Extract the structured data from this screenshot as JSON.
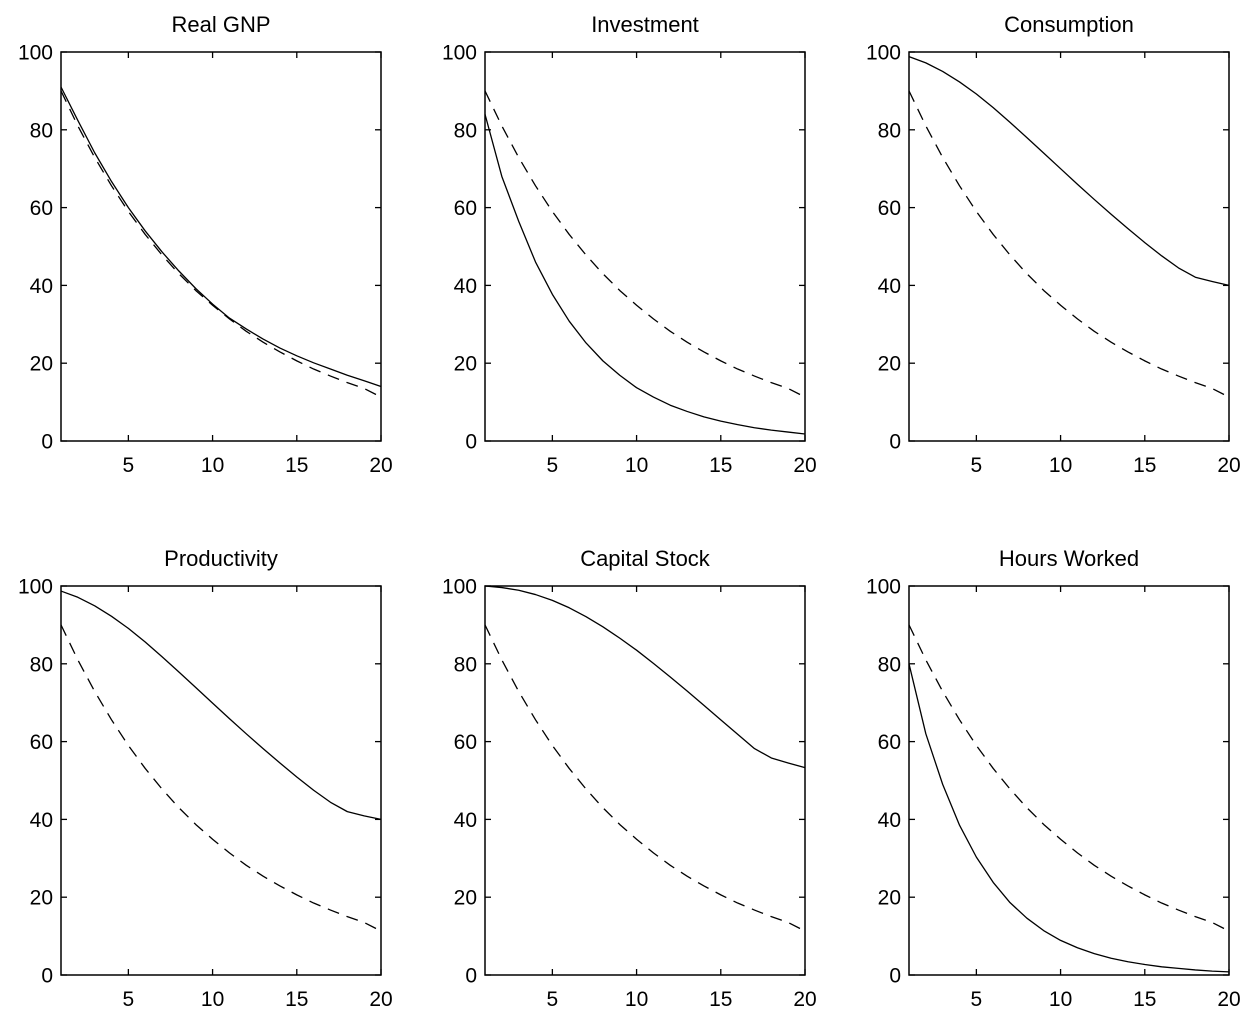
{
  "chart_data": [
    {
      "type": "line",
      "title": "Real GNP",
      "xlim": [
        1,
        20
      ],
      "ylim": [
        0,
        100
      ],
      "xticks": [
        5,
        10,
        15,
        20
      ],
      "yticks": [
        0,
        20,
        40,
        60,
        80,
        100
      ],
      "x": [
        1,
        2,
        3,
        4,
        5,
        6,
        7,
        8,
        9,
        10,
        11,
        12,
        13,
        14,
        15,
        16,
        17,
        18,
        19,
        20
      ],
      "series": [
        {
          "style": "solid",
          "values": [
            91.0,
            82.4,
            74.1,
            66.7,
            60.0,
            54.0,
            48.6,
            43.7,
            39.2,
            35.2,
            31.6,
            28.8,
            26.2,
            23.9,
            21.9,
            20.1,
            18.5,
            16.9,
            15.5,
            14.0
          ]
        },
        {
          "style": "dashed",
          "values": [
            90.0,
            81.0,
            72.9,
            65.6,
            59.0,
            53.1,
            47.8,
            43.0,
            38.7,
            34.9,
            31.4,
            28.2,
            25.4,
            22.9,
            20.6,
            18.5,
            16.7,
            15.0,
            13.5,
            11.3
          ]
        }
      ]
    },
    {
      "type": "line",
      "title": "Investment",
      "xlim": [
        1,
        20
      ],
      "ylim": [
        0,
        100
      ],
      "xticks": [
        5,
        10,
        15,
        20
      ],
      "yticks": [
        0,
        20,
        40,
        60,
        80,
        100
      ],
      "x": [
        1,
        2,
        3,
        4,
        5,
        6,
        7,
        8,
        9,
        10,
        11,
        12,
        13,
        14,
        15,
        16,
        17,
        18,
        19,
        20
      ],
      "series": [
        {
          "style": "solid",
          "values": [
            84.0,
            68.0,
            56.5,
            46.0,
            37.7,
            30.8,
            25.2,
            20.6,
            16.9,
            13.7,
            11.3,
            9.2,
            7.6,
            6.2,
            5.1,
            4.2,
            3.4,
            2.8,
            2.3,
            1.8
          ]
        },
        {
          "style": "dashed",
          "values": [
            90.0,
            81.0,
            72.9,
            65.6,
            59.0,
            53.1,
            47.8,
            43.0,
            38.7,
            34.9,
            31.4,
            28.2,
            25.4,
            22.9,
            20.6,
            18.5,
            16.7,
            15.0,
            13.5,
            11.3
          ]
        }
      ]
    },
    {
      "type": "line",
      "title": "Consumption",
      "xlim": [
        1,
        20
      ],
      "ylim": [
        0,
        100
      ],
      "xticks": [
        5,
        10,
        15,
        20
      ],
      "yticks": [
        0,
        20,
        40,
        60,
        80,
        100
      ],
      "x": [
        1,
        2,
        3,
        4,
        5,
        6,
        7,
        8,
        9,
        10,
        11,
        12,
        13,
        14,
        15,
        16,
        17,
        18,
        19,
        20
      ],
      "series": [
        {
          "style": "solid",
          "values": [
            98.8,
            97.2,
            95.0,
            92.3,
            89.2,
            85.7,
            81.9,
            78.0,
            74.0,
            70.0,
            66.0,
            62.1,
            58.3,
            54.6,
            51.0,
            47.6,
            44.5,
            42.1,
            41.0,
            40.0
          ]
        },
        {
          "style": "dashed",
          "values": [
            90.0,
            81.0,
            72.9,
            65.6,
            59.0,
            53.1,
            47.8,
            43.0,
            38.7,
            34.9,
            31.4,
            28.2,
            25.4,
            22.9,
            20.6,
            18.5,
            16.7,
            15.0,
            13.5,
            11.3
          ]
        }
      ]
    },
    {
      "type": "line",
      "title": "Productivity",
      "xlim": [
        1,
        20
      ],
      "ylim": [
        0,
        100
      ],
      "xticks": [
        5,
        10,
        15,
        20
      ],
      "yticks": [
        0,
        20,
        40,
        60,
        80,
        100
      ],
      "x": [
        1,
        2,
        3,
        4,
        5,
        6,
        7,
        8,
        9,
        10,
        11,
        12,
        13,
        14,
        15,
        16,
        17,
        18,
        19,
        20
      ],
      "series": [
        {
          "style": "solid",
          "values": [
            98.7,
            97.1,
            94.9,
            92.2,
            89.1,
            85.6,
            81.8,
            77.9,
            73.9,
            69.9,
            65.9,
            62.0,
            58.2,
            54.5,
            50.9,
            47.5,
            44.4,
            42.0,
            40.9,
            40.0
          ]
        },
        {
          "style": "dashed",
          "values": [
            90.0,
            81.0,
            72.9,
            65.6,
            59.0,
            53.1,
            47.8,
            43.0,
            38.7,
            34.9,
            31.4,
            28.2,
            25.4,
            22.9,
            20.6,
            18.5,
            16.7,
            15.0,
            13.5,
            11.3
          ]
        }
      ]
    },
    {
      "type": "line",
      "title": "Capital Stock",
      "xlim": [
        1,
        20
      ],
      "ylim": [
        0,
        100
      ],
      "xticks": [
        5,
        10,
        15,
        20
      ],
      "yticks": [
        0,
        20,
        40,
        60,
        80,
        100
      ],
      "x": [
        1,
        2,
        3,
        4,
        5,
        6,
        7,
        8,
        9,
        10,
        11,
        12,
        13,
        14,
        15,
        16,
        17,
        18,
        19,
        20
      ],
      "series": [
        {
          "style": "solid",
          "values": [
            100.0,
            99.6,
            98.9,
            97.8,
            96.3,
            94.4,
            92.1,
            89.5,
            86.6,
            83.5,
            80.1,
            76.6,
            73.0,
            69.3,
            65.6,
            61.9,
            58.2,
            55.8,
            54.5,
            53.3
          ]
        },
        {
          "style": "dashed",
          "values": [
            90.0,
            81.0,
            72.9,
            65.6,
            59.0,
            53.1,
            47.8,
            43.0,
            38.7,
            34.9,
            31.4,
            28.2,
            25.4,
            22.9,
            20.6,
            18.5,
            16.7,
            15.0,
            13.5,
            11.3
          ]
        }
      ]
    },
    {
      "type": "line",
      "title": "Hours Worked",
      "xlim": [
        1,
        20
      ],
      "ylim": [
        0,
        100
      ],
      "xticks": [
        5,
        10,
        15,
        20
      ],
      "yticks": [
        0,
        20,
        40,
        60,
        80,
        100
      ],
      "x": [
        1,
        2,
        3,
        4,
        5,
        6,
        7,
        8,
        9,
        10,
        11,
        12,
        13,
        14,
        15,
        16,
        17,
        18,
        19,
        20
      ],
      "series": [
        {
          "style": "solid",
          "values": [
            80.0,
            62.0,
            49.0,
            38.5,
            30.3,
            23.8,
            18.6,
            14.6,
            11.4,
            8.9,
            7.0,
            5.5,
            4.3,
            3.4,
            2.7,
            2.1,
            1.7,
            1.3,
            1.0,
            0.8
          ]
        },
        {
          "style": "dashed",
          "values": [
            90.0,
            81.0,
            72.9,
            65.6,
            59.0,
            53.1,
            47.8,
            43.0,
            38.7,
            34.9,
            31.4,
            28.2,
            25.4,
            22.9,
            20.6,
            18.5,
            16.7,
            15.0,
            13.5,
            11.3
          ]
        }
      ]
    }
  ]
}
